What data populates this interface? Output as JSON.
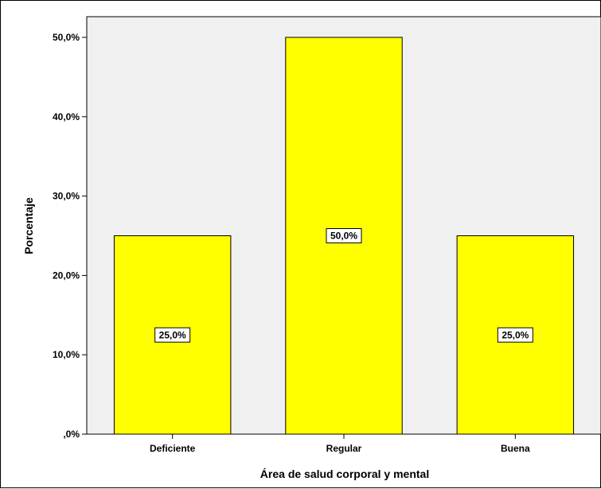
{
  "chart_data": {
    "type": "bar",
    "categories": [
      "Deficiente",
      "Regular",
      "Buena"
    ],
    "values": [
      25.0,
      50.0,
      25.0
    ],
    "data_labels": [
      "25,0%",
      "50,0%",
      "25,0%"
    ],
    "xlabel": "Área de salud corporal y mental",
    "ylabel": "Porcentaje",
    "ylim": [
      0,
      50
    ],
    "y_ticks": [
      0,
      10,
      20,
      30,
      40,
      50
    ],
    "y_tick_labels": [
      ",0%",
      "10,0%",
      "20,0%",
      "30,0%",
      "40,0%",
      "50,0%"
    ],
    "grid": false,
    "legend": "none",
    "bar_color": "#ffff00",
    "plot_background": "#f0f0f0"
  }
}
